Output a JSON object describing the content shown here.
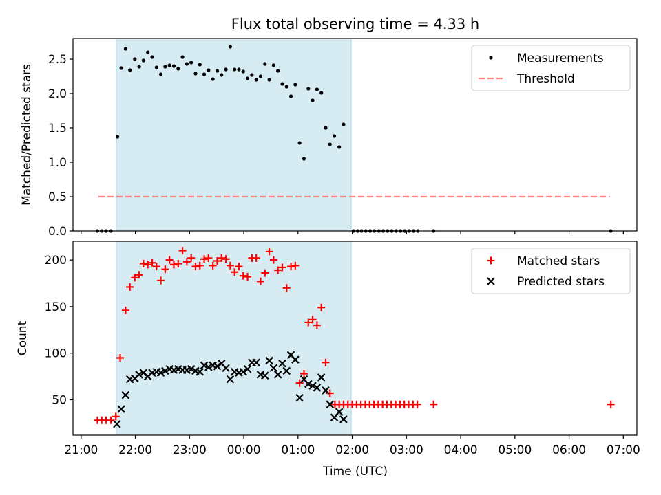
{
  "chart_data": [
    {
      "type": "scatter",
      "title": "Flux total observing time = 4.33 h",
      "ylabel": "Matched/Predicted stars",
      "xlabel": "",
      "ylim": [
        0,
        2.8
      ],
      "yticks": [
        0.0,
        0.5,
        1.0,
        1.5,
        2.0,
        2.5
      ],
      "ytick_labels": [
        "0.0",
        "0.5",
        "1.0",
        "1.5",
        "2.0",
        "2.5"
      ],
      "x_unit": "hours since 21:00 UTC",
      "xlim": [
        -0.15,
        10.25
      ],
      "xticks": [
        0,
        1,
        2,
        3,
        4,
        5,
        6,
        7,
        8,
        9,
        10
      ],
      "shaded_span": [
        0.65,
        4.98
      ],
      "legend": {
        "position": "top-right",
        "entries": [
          "Measurements",
          "Threshold"
        ]
      },
      "threshold": {
        "name": "Threshold",
        "y": 0.5,
        "x_range": [
          0.32,
          9.75
        ],
        "color": "#ff8080"
      },
      "series": [
        {
          "name": "Measurements",
          "color": "#000000",
          "points": [
            [
              0.3,
              0
            ],
            [
              0.38,
              0
            ],
            [
              0.46,
              0
            ],
            [
              0.55,
              0
            ],
            [
              0.67,
              1.37
            ],
            [
              0.74,
              2.37
            ],
            [
              0.82,
              2.65
            ],
            [
              0.9,
              2.34
            ],
            [
              0.99,
              2.5
            ],
            [
              1.07,
              2.39
            ],
            [
              1.15,
              2.48
            ],
            [
              1.23,
              2.6
            ],
            [
              1.31,
              2.53
            ],
            [
              1.39,
              2.38
            ],
            [
              1.47,
              2.28
            ],
            [
              1.55,
              2.39
            ],
            [
              1.63,
              2.41
            ],
            [
              1.71,
              2.4
            ],
            [
              1.79,
              2.36
            ],
            [
              1.87,
              2.53
            ],
            [
              1.95,
              2.43
            ],
            [
              2.03,
              2.45
            ],
            [
              2.11,
              2.29
            ],
            [
              2.19,
              2.42
            ],
            [
              2.27,
              2.28
            ],
            [
              2.35,
              2.34
            ],
            [
              2.43,
              2.21
            ],
            [
              2.51,
              2.33
            ],
            [
              2.59,
              2.27
            ],
            [
              2.67,
              2.35
            ],
            [
              2.75,
              2.68
            ],
            [
              2.83,
              2.35
            ],
            [
              2.91,
              2.35
            ],
            [
              2.99,
              2.32
            ],
            [
              3.07,
              2.22
            ],
            [
              3.15,
              2.27
            ],
            [
              3.23,
              2.2
            ],
            [
              3.31,
              2.25
            ],
            [
              3.39,
              2.43
            ],
            [
              3.47,
              2.2
            ],
            [
              3.55,
              2.41
            ],
            [
              3.63,
              2.33
            ],
            [
              3.71,
              2.14
            ],
            [
              3.79,
              2.1
            ],
            [
              3.87,
              1.96
            ],
            [
              3.95,
              2.13
            ],
            [
              4.03,
              1.28
            ],
            [
              4.11,
              1.05
            ],
            [
              4.19,
              2.07
            ],
            [
              4.27,
              1.9
            ],
            [
              4.35,
              2.06
            ],
            [
              4.43,
              2.01
            ],
            [
              4.51,
              1.5
            ],
            [
              4.59,
              1.26
            ],
            [
              4.67,
              1.38
            ],
            [
              4.76,
              1.22
            ],
            [
              4.84,
              1.55
            ],
            [
              5.02,
              0
            ],
            [
              5.1,
              0
            ],
            [
              5.17,
              0
            ],
            [
              5.25,
              0
            ],
            [
              5.33,
              0
            ],
            [
              5.41,
              0
            ],
            [
              5.49,
              0
            ],
            [
              5.57,
              0
            ],
            [
              5.65,
              0
            ],
            [
              5.73,
              0
            ],
            [
              5.81,
              0
            ],
            [
              5.89,
              0
            ],
            [
              5.97,
              0
            ],
            [
              6.05,
              0
            ],
            [
              6.13,
              0
            ],
            [
              6.21,
              0
            ],
            [
              6.5,
              0
            ],
            [
              9.77,
              0
            ]
          ]
        }
      ]
    },
    {
      "type": "scatter",
      "title": "",
      "ylabel": "Count",
      "xlabel": "Time (UTC)",
      "ylim": [
        12,
        220
      ],
      "yticks": [
        50,
        100,
        150,
        200
      ],
      "ytick_labels": [
        "50",
        "100",
        "150",
        "200"
      ],
      "x_unit": "hours since 21:00 UTC",
      "xlim": [
        -0.15,
        10.25
      ],
      "xticks": [
        0,
        1,
        2,
        3,
        4,
        5,
        6,
        7,
        8,
        9,
        10
      ],
      "xtick_labels": [
        "21:00",
        "22:00",
        "23:00",
        "00:00",
        "01:00",
        "02:00",
        "03:00",
        "04:00",
        "05:00",
        "06:00",
        "07:00"
      ],
      "shaded_span": [
        0.65,
        4.98
      ],
      "legend": {
        "position": "top-right",
        "entries": [
          "Matched stars",
          "Predicted stars"
        ]
      },
      "series": [
        {
          "name": "Matched stars",
          "marker": "+",
          "color": "#ff0000",
          "points": [
            [
              0.3,
              28
            ],
            [
              0.38,
              28
            ],
            [
              0.46,
              28
            ],
            [
              0.55,
              28
            ],
            [
              0.64,
              32
            ],
            [
              0.72,
              95
            ],
            [
              0.82,
              146
            ],
            [
              0.9,
              171
            ],
            [
              0.99,
              181
            ],
            [
              1.07,
              184
            ],
            [
              1.15,
              196
            ],
            [
              1.23,
              195
            ],
            [
              1.31,
              197
            ],
            [
              1.39,
              193
            ],
            [
              1.47,
              178
            ],
            [
              1.55,
              190
            ],
            [
              1.63,
              200
            ],
            [
              1.71,
              195
            ],
            [
              1.79,
              196
            ],
            [
              1.87,
              210
            ],
            [
              1.95,
              198
            ],
            [
              2.03,
              202
            ],
            [
              2.11,
              193
            ],
            [
              2.19,
              194
            ],
            [
              2.27,
              201
            ],
            [
              2.35,
              202
            ],
            [
              2.43,
              194
            ],
            [
              2.51,
              199
            ],
            [
              2.59,
              202
            ],
            [
              2.67,
              201
            ],
            [
              2.75,
              194
            ],
            [
              2.83,
              187
            ],
            [
              2.91,
              193
            ],
            [
              2.99,
              183
            ],
            [
              3.07,
              182
            ],
            [
              3.15,
              202
            ],
            [
              3.23,
              202
            ],
            [
              3.31,
              177
            ],
            [
              3.39,
              186
            ],
            [
              3.47,
              209
            ],
            [
              3.55,
              200
            ],
            [
              3.63,
              189
            ],
            [
              3.71,
              192
            ],
            [
              3.79,
              170
            ],
            [
              3.87,
              193
            ],
            [
              3.95,
              194
            ],
            [
              4.03,
              68
            ],
            [
              4.11,
              78
            ],
            [
              4.19,
              133
            ],
            [
              4.27,
              136
            ],
            [
              4.35,
              130
            ],
            [
              4.43,
              149
            ],
            [
              4.51,
              90
            ],
            [
              4.59,
              57
            ],
            [
              4.68,
              45
            ],
            [
              4.76,
              45
            ],
            [
              4.84,
              45
            ],
            [
              4.92,
              45
            ],
            [
              5.0,
              45
            ],
            [
              5.08,
              45
            ],
            [
              5.16,
              45
            ],
            [
              5.24,
              45
            ],
            [
              5.32,
              45
            ],
            [
              5.4,
              45
            ],
            [
              5.48,
              45
            ],
            [
              5.56,
              45
            ],
            [
              5.64,
              45
            ],
            [
              5.72,
              45
            ],
            [
              5.8,
              45
            ],
            [
              5.88,
              45
            ],
            [
              5.96,
              45
            ],
            [
              6.04,
              45
            ],
            [
              6.12,
              45
            ],
            [
              6.2,
              45
            ],
            [
              6.5,
              45
            ],
            [
              9.77,
              45
            ]
          ]
        },
        {
          "name": "Predicted stars",
          "marker": "x",
          "color": "#000000",
          "points": [
            [
              0.66,
              24
            ],
            [
              0.74,
              40
            ],
            [
              0.82,
              55
            ],
            [
              0.9,
              72
            ],
            [
              0.99,
              73
            ],
            [
              1.07,
              77
            ],
            [
              1.15,
              79
            ],
            [
              1.23,
              75
            ],
            [
              1.31,
              79
            ],
            [
              1.39,
              80
            ],
            [
              1.47,
              79
            ],
            [
              1.55,
              81
            ],
            [
              1.63,
              83
            ],
            [
              1.71,
              82
            ],
            [
              1.79,
              83
            ],
            [
              1.87,
              82
            ],
            [
              1.95,
              82
            ],
            [
              2.03,
              83
            ],
            [
              2.11,
              81
            ],
            [
              2.19,
              80
            ],
            [
              2.27,
              87
            ],
            [
              2.35,
              85
            ],
            [
              2.43,
              87
            ],
            [
              2.51,
              86
            ],
            [
              2.59,
              89
            ],
            [
              2.67,
              84
            ],
            [
              2.75,
              72
            ],
            [
              2.83,
              80
            ],
            [
              2.91,
              79
            ],
            [
              2.99,
              80
            ],
            [
              3.07,
              83
            ],
            [
              3.15,
              90
            ],
            [
              3.23,
              90
            ],
            [
              3.31,
              77
            ],
            [
              3.39,
              76
            ],
            [
              3.47,
              92
            ],
            [
              3.55,
              84
            ],
            [
              3.63,
              77
            ],
            [
              3.71,
              89
            ],
            [
              3.79,
              81
            ],
            [
              3.87,
              98
            ],
            [
              3.95,
              93
            ],
            [
              4.03,
              52
            ],
            [
              4.11,
              72
            ],
            [
              4.19,
              67
            ],
            [
              4.27,
              65
            ],
            [
              4.35,
              63
            ],
            [
              4.43,
              74
            ],
            [
              4.51,
              60
            ],
            [
              4.59,
              45
            ],
            [
              4.67,
              31
            ],
            [
              4.76,
              37
            ],
            [
              4.84,
              29
            ]
          ]
        }
      ]
    }
  ]
}
